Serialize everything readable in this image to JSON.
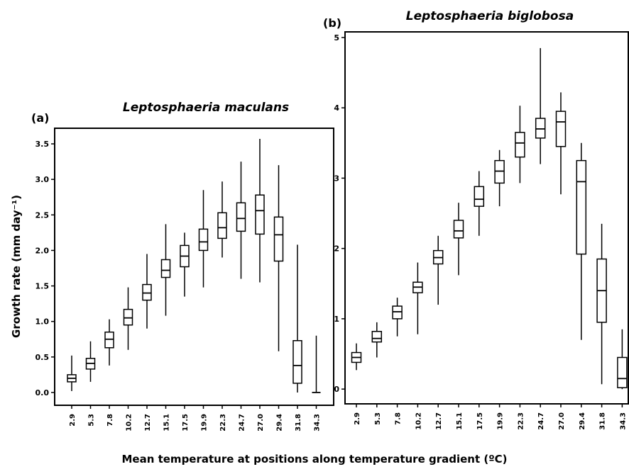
{
  "chart_data": [
    {
      "type": "box",
      "panel": "(a)",
      "title": "Leptosphaeria maculans",
      "ylabel": "Growth rate (mm day⁻¹)",
      "categories": [
        "2.9",
        "5.3",
        "7.8",
        "10.2",
        "12.7",
        "15.1",
        "17.5",
        "19.9",
        "22.3",
        "24.7",
        "27.0",
        "29.4",
        "31.8",
        "34.3"
      ],
      "whisker_low": [
        0.02,
        0.15,
        0.38,
        0.6,
        0.9,
        1.08,
        1.35,
        1.48,
        1.9,
        1.6,
        1.55,
        0.58,
        0.0,
        0.0
      ],
      "q1": [
        0.15,
        0.33,
        0.63,
        0.95,
        1.3,
        1.62,
        1.77,
        2.0,
        2.17,
        2.27,
        2.23,
        1.85,
        0.13,
        0.0
      ],
      "median": [
        0.2,
        0.41,
        0.75,
        1.05,
        1.4,
        1.72,
        1.92,
        2.12,
        2.32,
        2.45,
        2.56,
        2.22,
        0.38,
        0.0
      ],
      "q3": [
        0.25,
        0.48,
        0.85,
        1.17,
        1.52,
        1.87,
        2.07,
        2.3,
        2.53,
        2.67,
        2.78,
        2.47,
        0.73,
        0.0
      ],
      "whisker_high": [
        0.52,
        0.72,
        1.03,
        1.48,
        1.95,
        2.37,
        2.25,
        2.85,
        2.97,
        3.25,
        3.57,
        3.2,
        2.08,
        0.8
      ],
      "ylim": [
        -0.18,
        3.72
      ],
      "yticks": [
        {
          "value": 0,
          "label": "0.0"
        },
        0.5,
        {
          "value": 1,
          "label": "1.0"
        },
        1.5,
        {
          "value": 2,
          "label": "2.0"
        },
        2.5,
        {
          "value": 3,
          "label": "3.0"
        },
        3.5
      ]
    },
    {
      "type": "box",
      "panel": "(b)",
      "title": "Leptosphaeria biglobosa",
      "categories": [
        "2.9",
        "5.3",
        "7.8",
        "10.2",
        "12.7",
        "15.1",
        "17.5",
        "19.9",
        "22.3",
        "24.7",
        "27.0",
        "29.4",
        "31.8",
        "34.3"
      ],
      "whisker_low": [
        0.27,
        0.45,
        0.75,
        0.78,
        1.2,
        1.62,
        2.18,
        2.6,
        2.93,
        3.2,
        2.77,
        0.7,
        0.07,
        0.0
      ],
      "q1": [
        0.38,
        0.67,
        1.0,
        1.37,
        1.78,
        2.15,
        2.6,
        2.93,
        3.3,
        3.57,
        3.45,
        1.92,
        0.95,
        0.02
      ],
      "median": [
        0.45,
        0.72,
        1.1,
        1.45,
        1.87,
        2.25,
        2.7,
        3.1,
        3.5,
        3.7,
        3.8,
        2.95,
        1.4,
        0.15
      ],
      "q3": [
        0.52,
        0.82,
        1.18,
        1.52,
        1.97,
        2.4,
        2.88,
        3.25,
        3.65,
        3.85,
        3.95,
        3.25,
        1.85,
        0.45
      ],
      "whisker_high": [
        0.65,
        0.95,
        1.3,
        1.8,
        2.18,
        2.65,
        3.1,
        3.4,
        4.03,
        4.85,
        4.22,
        3.5,
        2.35,
        0.85
      ],
      "ylim": [
        -0.21,
        5.08
      ],
      "yticks": [
        0,
        1,
        2,
        3,
        4,
        5
      ]
    }
  ],
  "xlabel": "Mean temperature at positions along temperature gradient (ºC)"
}
